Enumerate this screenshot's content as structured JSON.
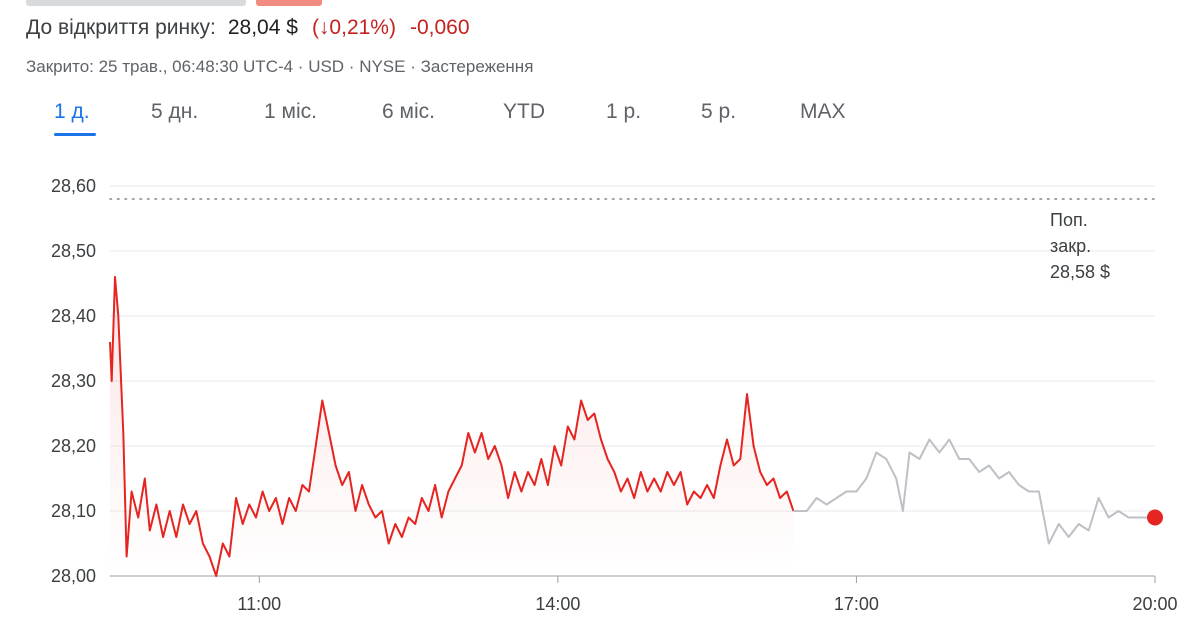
{
  "quote": {
    "label": "До відкриття ринку:",
    "price": "28,04 $",
    "pct_change": "(↓0,21%)",
    "abs_change": "-0,060",
    "meta": "Закрито: 25 трав., 06:48:30 UTC-4 · USD · NYSE · Застереження"
  },
  "tabs": [
    {
      "label": "1 д.",
      "active": true
    },
    {
      "label": "5 дн.",
      "active": false
    },
    {
      "label": "1 міс.",
      "active": false
    },
    {
      "label": "6 міс.",
      "active": false
    },
    {
      "label": "YTD",
      "active": false
    },
    {
      "label": "1 р.",
      "active": false
    },
    {
      "label": "5 р.",
      "active": false
    },
    {
      "label": "MAX",
      "active": false
    }
  ],
  "colors": {
    "down": "#e52521",
    "after_hours": "#bdc1c6",
    "accent": "#1a73e8",
    "grid": "#e8eaed"
  },
  "chart_data": {
    "type": "line",
    "xlim": [
      "09:30",
      "20:00"
    ],
    "x_ticks": [
      "11:00",
      "14:00",
      "17:00",
      "20:00"
    ],
    "y_ticks": [
      "28,00",
      "28,10",
      "28,20",
      "28,30",
      "28,40",
      "28,50",
      "28,60"
    ],
    "ylim": [
      28.0,
      28.6
    ],
    "grid": true,
    "reference_line": {
      "value": 28.58,
      "label_lines": [
        "Поп.",
        "закр.",
        "28,58 $"
      ]
    },
    "series": [
      {
        "segment": "market",
        "color": "#e52521",
        "points": [
          [
            "09:30",
            28.36
          ],
          [
            "09:31",
            28.3
          ],
          [
            "09:33",
            28.46
          ],
          [
            "09:35",
            28.4
          ],
          [
            "09:38",
            28.22
          ],
          [
            "09:40",
            28.03
          ],
          [
            "09:43",
            28.13
          ],
          [
            "09:47",
            28.09
          ],
          [
            "09:51",
            28.15
          ],
          [
            "09:54",
            28.07
          ],
          [
            "09:58",
            28.11
          ],
          [
            "10:02",
            28.06
          ],
          [
            "10:06",
            28.1
          ],
          [
            "10:10",
            28.06
          ],
          [
            "10:14",
            28.11
          ],
          [
            "10:18",
            28.08
          ],
          [
            "10:22",
            28.1
          ],
          [
            "10:26",
            28.05
          ],
          [
            "10:30",
            28.03
          ],
          [
            "10:34",
            28.0
          ],
          [
            "10:38",
            28.05
          ],
          [
            "10:42",
            28.03
          ],
          [
            "10:46",
            28.12
          ],
          [
            "10:50",
            28.08
          ],
          [
            "10:54",
            28.11
          ],
          [
            "10:58",
            28.09
          ],
          [
            "11:02",
            28.13
          ],
          [
            "11:06",
            28.1
          ],
          [
            "11:10",
            28.12
          ],
          [
            "11:14",
            28.08
          ],
          [
            "11:18",
            28.12
          ],
          [
            "11:22",
            28.1
          ],
          [
            "11:26",
            28.14
          ],
          [
            "11:30",
            28.13
          ],
          [
            "11:34",
            28.2
          ],
          [
            "11:38",
            28.27
          ],
          [
            "11:42",
            28.22
          ],
          [
            "11:46",
            28.17
          ],
          [
            "11:50",
            28.14
          ],
          [
            "11:54",
            28.16
          ],
          [
            "11:58",
            28.1
          ],
          [
            "12:02",
            28.14
          ],
          [
            "12:06",
            28.11
          ],
          [
            "12:10",
            28.09
          ],
          [
            "12:14",
            28.1
          ],
          [
            "12:18",
            28.05
          ],
          [
            "12:22",
            28.08
          ],
          [
            "12:26",
            28.06
          ],
          [
            "12:30",
            28.09
          ],
          [
            "12:34",
            28.08
          ],
          [
            "12:38",
            28.12
          ],
          [
            "12:42",
            28.1
          ],
          [
            "12:46",
            28.14
          ],
          [
            "12:50",
            28.09
          ],
          [
            "12:54",
            28.13
          ],
          [
            "12:58",
            28.15
          ],
          [
            "13:02",
            28.17
          ],
          [
            "13:06",
            28.22
          ],
          [
            "13:10",
            28.19
          ],
          [
            "13:14",
            28.22
          ],
          [
            "13:18",
            28.18
          ],
          [
            "13:22",
            28.2
          ],
          [
            "13:26",
            28.17
          ],
          [
            "13:30",
            28.12
          ],
          [
            "13:34",
            28.16
          ],
          [
            "13:38",
            28.13
          ],
          [
            "13:42",
            28.16
          ],
          [
            "13:46",
            28.14
          ],
          [
            "13:50",
            28.18
          ],
          [
            "13:54",
            28.14
          ],
          [
            "13:58",
            28.2
          ],
          [
            "14:02",
            28.17
          ],
          [
            "14:06",
            28.23
          ],
          [
            "14:10",
            28.21
          ],
          [
            "14:14",
            28.27
          ],
          [
            "14:18",
            28.24
          ],
          [
            "14:22",
            28.25
          ],
          [
            "14:26",
            28.21
          ],
          [
            "14:30",
            28.18
          ],
          [
            "14:34",
            28.16
          ],
          [
            "14:38",
            28.13
          ],
          [
            "14:42",
            28.15
          ],
          [
            "14:46",
            28.12
          ],
          [
            "14:50",
            28.16
          ],
          [
            "14:54",
            28.13
          ],
          [
            "14:58",
            28.15
          ],
          [
            "15:02",
            28.13
          ],
          [
            "15:06",
            28.16
          ],
          [
            "15:10",
            28.14
          ],
          [
            "15:14",
            28.16
          ],
          [
            "15:18",
            28.11
          ],
          [
            "15:22",
            28.13
          ],
          [
            "15:26",
            28.12
          ],
          [
            "15:30",
            28.14
          ],
          [
            "15:34",
            28.12
          ],
          [
            "15:38",
            28.17
          ],
          [
            "15:42",
            28.21
          ],
          [
            "15:46",
            28.17
          ],
          [
            "15:50",
            28.18
          ],
          [
            "15:54",
            28.28
          ],
          [
            "15:58",
            28.2
          ],
          [
            "16:02",
            28.16
          ],
          [
            "16:06",
            28.14
          ],
          [
            "16:10",
            28.15
          ],
          [
            "16:14",
            28.12
          ],
          [
            "16:18",
            28.13
          ],
          [
            "16:22",
            28.1
          ]
        ]
      },
      {
        "segment": "after_hours",
        "color": "#bdc1c6",
        "points": [
          [
            "16:22",
            28.1
          ],
          [
            "16:30",
            28.1
          ],
          [
            "16:36",
            28.12
          ],
          [
            "16:42",
            28.11
          ],
          [
            "16:48",
            28.12
          ],
          [
            "16:54",
            28.13
          ],
          [
            "17:00",
            28.13
          ],
          [
            "17:06",
            28.15
          ],
          [
            "17:12",
            28.19
          ],
          [
            "17:18",
            28.18
          ],
          [
            "17:24",
            28.15
          ],
          [
            "17:28",
            28.1
          ],
          [
            "17:32",
            28.19
          ],
          [
            "17:38",
            28.18
          ],
          [
            "17:44",
            28.21
          ],
          [
            "17:50",
            28.19
          ],
          [
            "17:56",
            28.21
          ],
          [
            "18:02",
            28.18
          ],
          [
            "18:08",
            28.18
          ],
          [
            "18:14",
            28.16
          ],
          [
            "18:20",
            28.17
          ],
          [
            "18:26",
            28.15
          ],
          [
            "18:32",
            28.16
          ],
          [
            "18:38",
            28.14
          ],
          [
            "18:44",
            28.13
          ],
          [
            "18:50",
            28.13
          ],
          [
            "18:56",
            28.05
          ],
          [
            "19:02",
            28.08
          ],
          [
            "19:08",
            28.06
          ],
          [
            "19:14",
            28.08
          ],
          [
            "19:20",
            28.07
          ],
          [
            "19:26",
            28.12
          ],
          [
            "19:32",
            28.09
          ],
          [
            "19:38",
            28.1
          ],
          [
            "19:44",
            28.09
          ],
          [
            "19:50",
            28.09
          ],
          [
            "19:56",
            28.09
          ],
          [
            "20:00",
            28.09
          ]
        ]
      }
    ],
    "last_point": [
      "20:00",
      28.09
    ]
  }
}
